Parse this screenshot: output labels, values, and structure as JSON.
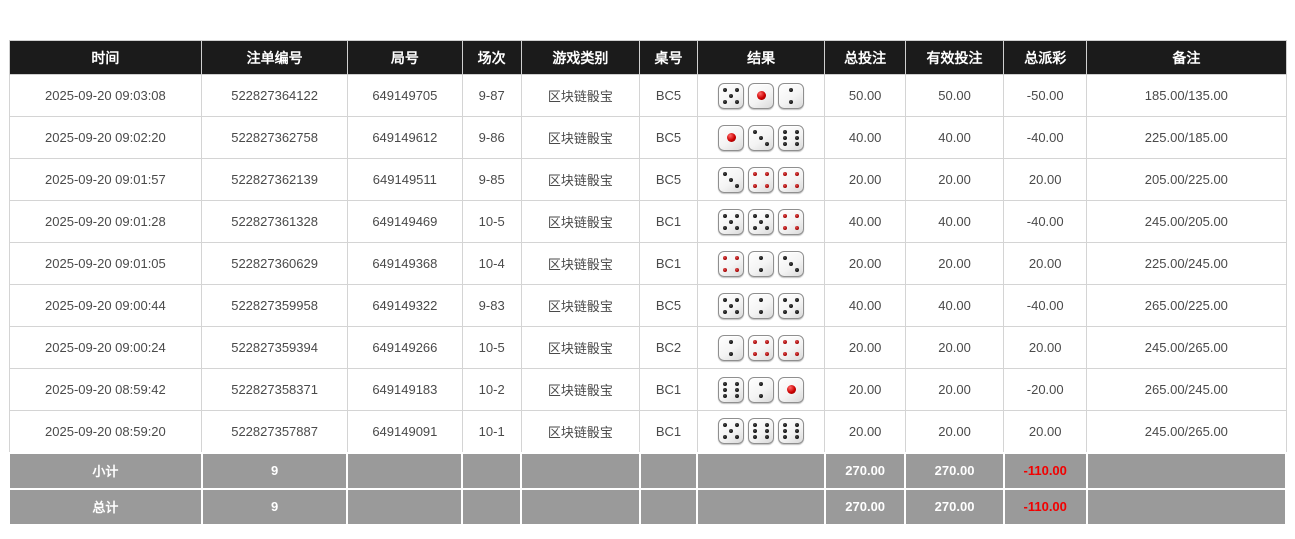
{
  "colors": {
    "header_bg": "#1b1b1b",
    "header_text": "#ffffff",
    "body_text": "#4a4a4a",
    "bet_blue": "#2a6bd2",
    "loss_red": "#e84343",
    "summary_bg": "#9a9a9a",
    "summary_red": "#f20000",
    "border": "#d4d4d4"
  },
  "table": {
    "headers": [
      "时间",
      "注单编号",
      "局号",
      "场次",
      "游戏类别",
      "桌号",
      "结果",
      "总投注",
      "有效投注",
      "总派彩",
      "备注"
    ],
    "rows": [
      {
        "time": "2025-09-20 09:03:08",
        "bet_id": "522827364122",
        "round": "649149705",
        "session": "9-87",
        "game": "区块链骰宝",
        "table_no": "BC5",
        "dice": [
          5,
          1,
          2
        ],
        "total_bet": "50.00",
        "valid_bet": "50.00",
        "payout": "-50.00",
        "remark": "185.00/135.00"
      },
      {
        "time": "2025-09-20 09:02:20",
        "bet_id": "522827362758",
        "round": "649149612",
        "session": "9-86",
        "game": "区块链骰宝",
        "table_no": "BC5",
        "dice": [
          1,
          3,
          6
        ],
        "total_bet": "40.00",
        "valid_bet": "40.00",
        "payout": "-40.00",
        "remark": "225.00/185.00"
      },
      {
        "time": "2025-09-20 09:01:57",
        "bet_id": "522827362139",
        "round": "649149511",
        "session": "9-85",
        "game": "区块链骰宝",
        "table_no": "BC5",
        "dice": [
          3,
          4,
          4
        ],
        "total_bet": "20.00",
        "valid_bet": "20.00",
        "payout": "20.00",
        "remark": "205.00/225.00"
      },
      {
        "time": "2025-09-20 09:01:28",
        "bet_id": "522827361328",
        "round": "649149469",
        "session": "10-5",
        "game": "区块链骰宝",
        "table_no": "BC1",
        "dice": [
          5,
          5,
          4
        ],
        "total_bet": "40.00",
        "valid_bet": "40.00",
        "payout": "-40.00",
        "remark": "245.00/205.00"
      },
      {
        "time": "2025-09-20 09:01:05",
        "bet_id": "522827360629",
        "round": "649149368",
        "session": "10-4",
        "game": "区块链骰宝",
        "table_no": "BC1",
        "dice": [
          4,
          2,
          3
        ],
        "total_bet": "20.00",
        "valid_bet": "20.00",
        "payout": "20.00",
        "remark": "225.00/245.00"
      },
      {
        "time": "2025-09-20 09:00:44",
        "bet_id": "522827359958",
        "round": "649149322",
        "session": "9-83",
        "game": "区块链骰宝",
        "table_no": "BC5",
        "dice": [
          5,
          2,
          5
        ],
        "total_bet": "40.00",
        "valid_bet": "40.00",
        "payout": "-40.00",
        "remark": "265.00/225.00"
      },
      {
        "time": "2025-09-20 09:00:24",
        "bet_id": "522827359394",
        "round": "649149266",
        "session": "10-5",
        "game": "区块链骰宝",
        "table_no": "BC2",
        "dice": [
          2,
          4,
          4
        ],
        "total_bet": "20.00",
        "valid_bet": "20.00",
        "payout": "20.00",
        "remark": "245.00/265.00"
      },
      {
        "time": "2025-09-20 08:59:42",
        "bet_id": "522827358371",
        "round": "649149183",
        "session": "10-2",
        "game": "区块链骰宝",
        "table_no": "BC1",
        "dice": [
          6,
          2,
          1
        ],
        "total_bet": "20.00",
        "valid_bet": "20.00",
        "payout": "-20.00",
        "remark": "265.00/245.00"
      },
      {
        "time": "2025-09-20 08:59:20",
        "bet_id": "522827357887",
        "round": "649149091",
        "session": "10-1",
        "game": "区块链骰宝",
        "table_no": "BC1",
        "dice": [
          5,
          6,
          6
        ],
        "total_bet": "20.00",
        "valid_bet": "20.00",
        "payout": "20.00",
        "remark": "245.00/265.00"
      }
    ],
    "subtotal": {
      "label": "小计",
      "count": "9",
      "total_bet": "270.00",
      "valid_bet": "270.00",
      "payout": "-110.00"
    },
    "total": {
      "label": "总计",
      "count": "9",
      "total_bet": "270.00",
      "valid_bet": "270.00",
      "payout": "-110.00"
    }
  }
}
